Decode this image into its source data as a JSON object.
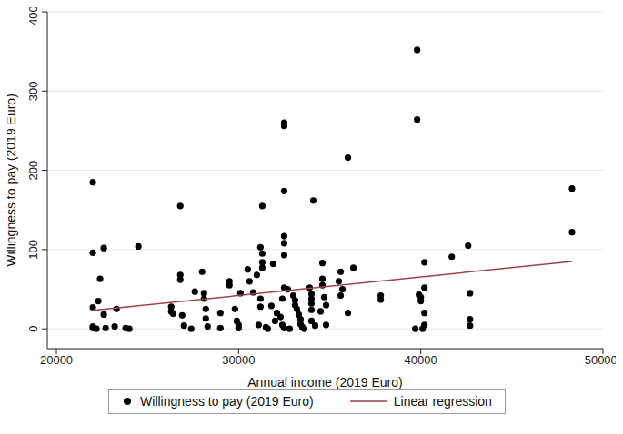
{
  "chart_data": {
    "type": "scatter",
    "x_label": "Annual income (2019 Euro)",
    "y_label": "Willingness to pay (2019 Euro)",
    "xlim": [
      19500,
      50000
    ],
    "xticks": [
      20000,
      30000,
      40000,
      50000
    ],
    "ylim": [
      -25,
      400
    ],
    "yticks": [
      0,
      100,
      200,
      300,
      400
    ],
    "grid": true,
    "legend": "bottom",
    "series": [
      {
        "name": "Willingness to pay (2019 Euro)",
        "type": "scatter",
        "marker": "circle",
        "color": "#000000",
        "x": [
          22000,
          22000,
          22000,
          22000,
          22000,
          22200,
          22300,
          22400,
          22600,
          22600,
          22700,
          23200,
          23300,
          23800,
          24000,
          24500,
          26300,
          26300,
          26400,
          26800,
          26800,
          26800,
          26900,
          27000,
          27400,
          27600,
          28000,
          28100,
          28100,
          28200,
          28200,
          28300,
          29000,
          29000,
          29500,
          29500,
          29800,
          29900,
          30000,
          30000,
          30100,
          30500,
          30600,
          30800,
          31000,
          31200,
          31300,
          31300,
          31300,
          31300,
          31200,
          31200,
          31100,
          31500,
          31600,
          31800,
          31900,
          32000,
          32100,
          32300,
          32400,
          32500,
          32500,
          32500,
          32500,
          32500,
          32500,
          32500,
          32400,
          32500,
          32700,
          32800,
          33000,
          33100,
          33100,
          33200,
          33300,
          33400,
          33400,
          33500,
          33600,
          33900,
          34100,
          34000,
          34000,
          34000,
          34000,
          34000,
          34200,
          34500,
          34600,
          34600,
          34600,
          34700,
          34800,
          34800,
          35500,
          35600,
          35600,
          35700,
          36000,
          36000,
          36300,
          37800,
          37800,
          39700,
          39800,
          39800,
          39900,
          40000,
          40000,
          40100,
          40200,
          40200,
          40200,
          40200,
          41700,
          42600,
          42700,
          42700,
          42700,
          48300,
          48300
        ],
        "values": [
          185,
          96,
          27,
          3,
          1,
          0,
          35,
          63,
          102,
          18,
          1,
          3,
          25,
          1,
          0,
          104,
          28,
          22,
          19,
          155,
          68,
          62,
          17,
          4,
          0,
          47,
          72,
          45,
          38,
          25,
          13,
          3,
          20,
          1,
          60,
          55,
          25,
          10,
          5,
          1,
          45,
          75,
          60,
          46,
          68,
          103,
          95,
          84,
          77,
          155,
          38,
          28,
          5,
          2,
          0,
          29,
          82,
          10,
          20,
          15,
          5,
          260,
          256,
          174,
          117,
          108,
          93,
          52,
          38,
          1,
          50,
          0,
          42,
          36,
          30,
          25,
          18,
          12,
          6,
          2,
          0,
          52,
          162,
          44,
          38,
          32,
          24,
          10,
          4,
          22,
          83,
          63,
          55,
          40,
          30,
          5,
          60,
          72,
          42,
          50,
          216,
          20,
          77,
          42,
          37,
          0,
          352,
          264,
          43,
          40,
          35,
          0,
          52,
          84,
          20,
          5,
          91,
          105,
          45,
          12,
          4,
          177,
          122
        ]
      },
      {
        "name": "Linear regression",
        "type": "line",
        "line_style": "solid",
        "color": "#a0424e",
        "x": [
          21900,
          48300
        ],
        "values": [
          23,
          85
        ]
      }
    ]
  }
}
